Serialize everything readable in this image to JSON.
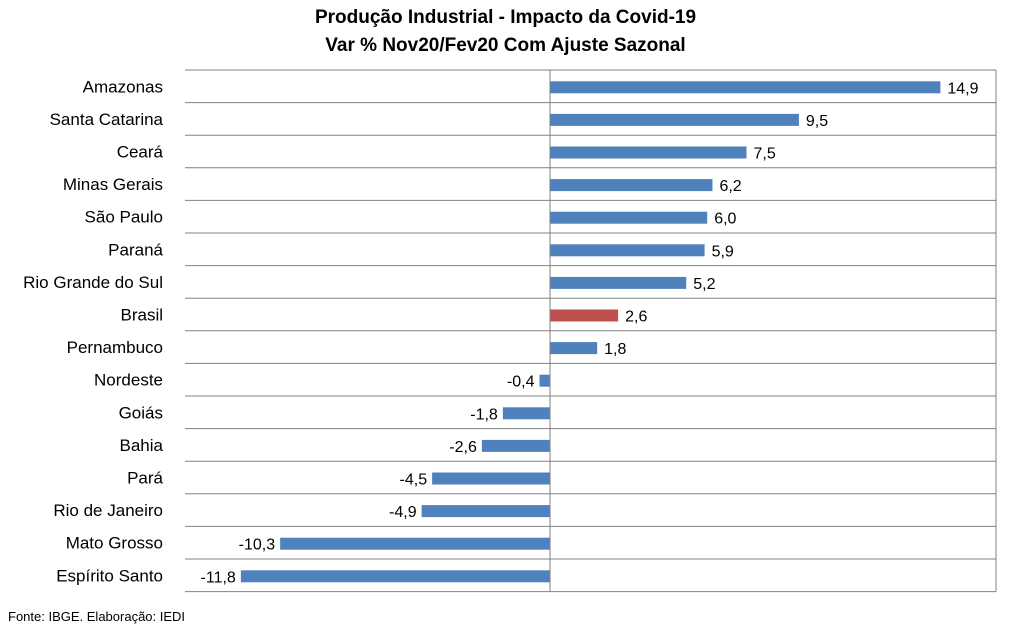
{
  "chart_data": {
    "type": "bar",
    "orientation": "horizontal",
    "title": "Produção Industrial - Impacto da Covid-19",
    "subtitle": "Var % Nov20/Fev20 Com Ajuste Sazonal",
    "categories": [
      "Amazonas",
      "Santa Catarina",
      "Ceará",
      "Minas Gerais",
      "São Paulo",
      "Paraná",
      "Rio Grande do Sul",
      "Brasil",
      "Pernambuco",
      "Nordeste",
      "Goiás",
      "Bahia",
      "Pará",
      "Rio de Janeiro",
      "Mato Grosso",
      "Espírito Santo"
    ],
    "values": [
      14.9,
      9.5,
      7.5,
      6.2,
      6.0,
      5.9,
      5.2,
      2.6,
      1.8,
      -0.4,
      -1.8,
      -2.6,
      -4.5,
      -4.9,
      -10.3,
      -11.8
    ],
    "data_labels": [
      "14,9",
      "9,5",
      "7,5",
      "6,2",
      "6,0",
      "5,9",
      "5,2",
      "2,6",
      "1,8",
      "-0,4",
      "-1,8",
      "-2,6",
      "-4,5",
      "-4,9",
      "-10,3",
      "-11,8"
    ],
    "highlight_category": "Brasil",
    "xlim": [
      -14,
      17
    ],
    "grid": true,
    "colors": {
      "bar": "#4f81bd",
      "highlight": "#c0504d",
      "grid": "#808080"
    }
  },
  "source_note": "Fonte: IBGE. Elaboração: IEDI"
}
